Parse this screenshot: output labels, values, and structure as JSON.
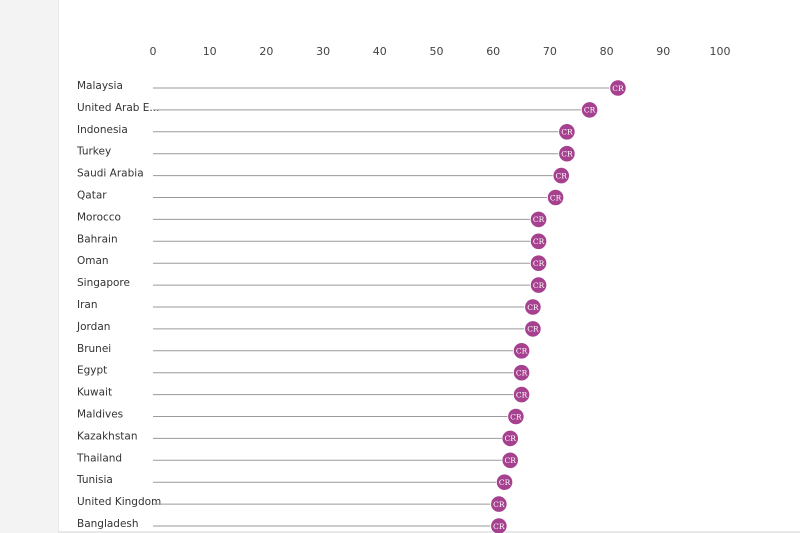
{
  "chart_data": {
    "type": "lollipop",
    "marker_label": "CR",
    "marker_color": "#a6418f",
    "xlim": [
      0,
      100
    ],
    "x_ticks": [
      "0",
      "10",
      "20",
      "30",
      "40",
      "50",
      "60",
      "70",
      "80",
      "90",
      "100"
    ],
    "categories": [
      "Malaysia",
      "United Arab E...",
      "Indonesia",
      "Turkey",
      "Saudi Arabia",
      "Qatar",
      "Morocco",
      "Bahrain",
      "Oman",
      "Singapore",
      "Iran",
      "Jordan",
      "Brunei",
      "Egypt",
      "Kuwait",
      "Maldives",
      "Kazakhstan",
      "Thailand",
      "Tunisia",
      "United Kingdom",
      "Bangladesh"
    ],
    "values": [
      82,
      77,
      73,
      73,
      72,
      71,
      68,
      68,
      68,
      68,
      67,
      67,
      65,
      65,
      65,
      64,
      63,
      63,
      62,
      61,
      61
    ],
    "grid": false,
    "legend": "none"
  }
}
